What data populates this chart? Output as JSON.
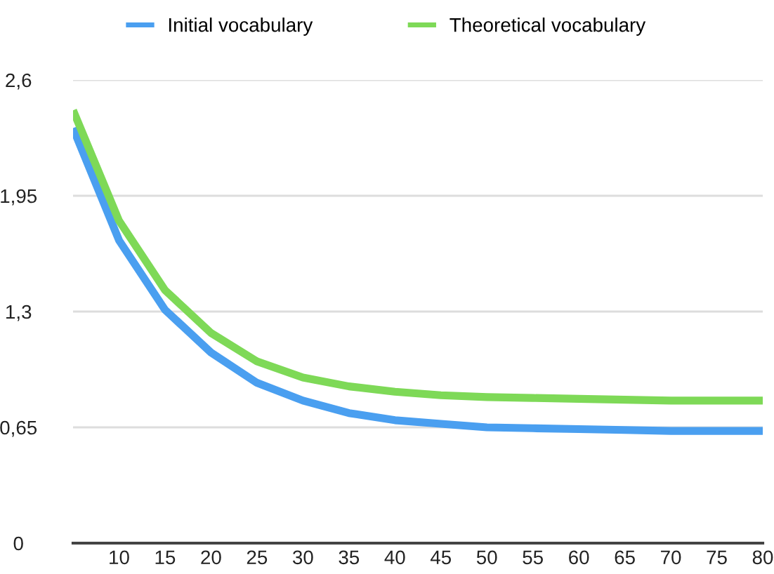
{
  "chart_data": {
    "type": "line",
    "categories": [
      null,
      "10",
      "15",
      "20",
      "25",
      "30",
      "35",
      "40",
      "45",
      "50",
      "55",
      "60",
      "65",
      "70",
      "75",
      "80"
    ],
    "series": [
      {
        "name": "Initial vocabulary",
        "color": "#4a9ff0",
        "values": [
          2.33,
          1.7,
          1.31,
          1.07,
          0.9,
          0.8,
          0.73,
          0.69,
          0.67,
          0.65,
          0.645,
          0.64,
          0.635,
          0.63,
          0.63,
          0.63
        ]
      },
      {
        "name": "Theoretical vocabulary",
        "color": "#7ed957",
        "values": [
          2.43,
          1.81,
          1.42,
          1.18,
          1.02,
          0.93,
          0.88,
          0.85,
          0.83,
          0.82,
          0.815,
          0.81,
          0.805,
          0.8,
          0.8,
          0.8
        ]
      }
    ],
    "ylim": [
      0,
      2.6
    ],
    "yticks": [
      0,
      {
        "value": 0.65,
        "label": "0,65"
      },
      {
        "value": 1.3,
        "label": "1,3"
      },
      {
        "value": 1.95,
        "label": "1,95"
      },
      {
        "value": 2.6,
        "label": "2,6"
      }
    ],
    "grid": "y",
    "legend": "top",
    "marker": "none",
    "line_style": "solid"
  }
}
